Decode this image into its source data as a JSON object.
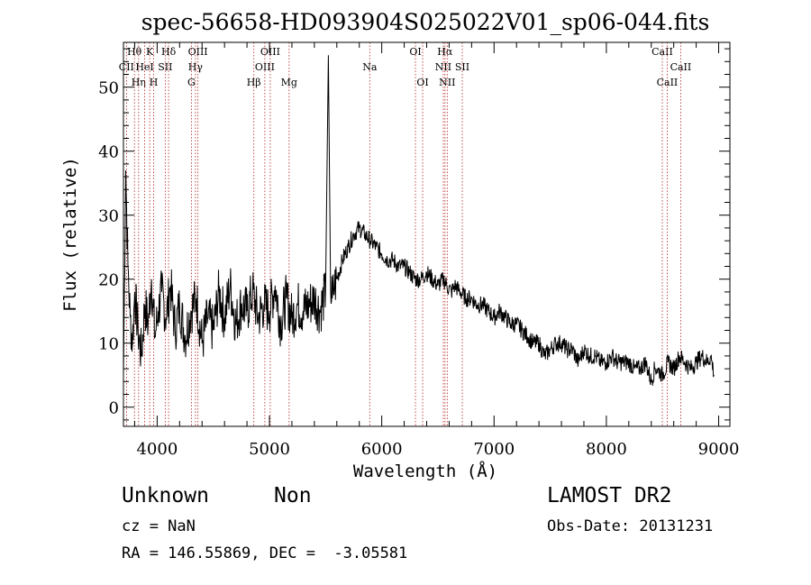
{
  "chart_data": {
    "type": "line",
    "title": "spec-56658-HD093904S025022V01_sp06-044.fits",
    "xlabel": "Wavelength (Å)",
    "ylabel": "Flux (relative)",
    "xlim": [
      3700,
      9100
    ],
    "ylim": [
      -3,
      57
    ],
    "x_ticks": [
      4000,
      5000,
      6000,
      7000,
      8000,
      9000
    ],
    "y_ticks": [
      0,
      10,
      20,
      30,
      40,
      50
    ],
    "grid": false,
    "series": [
      {
        "x": [
          3700,
          3720,
          3740,
          3760,
          3780,
          3800,
          3830,
          3860,
          3890,
          3920,
          3950,
          3980,
          4010,
          4040,
          4080,
          4120,
          4160,
          4200,
          4250,
          4300,
          4350,
          4400,
          4450,
          4500,
          4550,
          4600,
          4650,
          4700,
          4750,
          4800,
          4850,
          4900,
          4950,
          5000,
          5050,
          5100,
          5150,
          5200,
          5250,
          5300,
          5350,
          5400,
          5450,
          5500,
          5525,
          5545,
          5560,
          5580,
          5600,
          5650,
          5700,
          5750,
          5800,
          5850,
          5900,
          5950,
          6000,
          6050,
          6100,
          6150,
          6200,
          6250,
          6300,
          6350,
          6400,
          6450,
          6500,
          6550,
          6580,
          6620,
          6650,
          6700,
          6750,
          6800,
          6850,
          6900,
          6950,
          7000,
          7050,
          7100,
          7150,
          7200,
          7250,
          7300,
          7350,
          7400,
          7450,
          7500,
          7550,
          7600,
          7650,
          7700,
          7750,
          7800,
          7850,
          7900,
          7950,
          8000,
          8050,
          8100,
          8150,
          8200,
          8250,
          8300,
          8350,
          8400,
          8430,
          8450,
          8500,
          8550,
          8600,
          8650,
          8700,
          8750,
          8800,
          8850,
          8900,
          8930,
          8960
        ],
        "y": [
          5,
          37,
          22,
          14,
          10,
          18,
          12,
          8,
          16,
          13,
          20,
          11,
          15,
          18,
          14,
          19,
          12,
          16,
          11,
          15,
          17,
          10,
          14,
          12,
          18,
          14,
          19,
          13,
          16,
          15,
          18,
          14,
          16,
          15,
          19,
          13,
          17,
          14,
          16,
          15,
          16,
          17,
          15,
          18,
          55,
          18,
          17,
          19,
          20,
          23,
          25,
          27,
          28,
          27,
          26,
          25,
          24,
          23,
          23,
          22,
          22,
          21,
          20,
          20,
          21,
          20,
          19,
          20,
          19,
          18,
          19,
          18,
          17,
          17,
          16,
          16,
          15,
          14,
          15,
          14,
          13,
          13,
          12,
          11,
          10,
          10,
          8,
          9,
          10,
          10,
          9,
          9,
          7,
          9,
          8,
          8,
          7,
          7,
          8,
          7,
          7,
          7,
          6,
          6,
          7,
          4,
          6,
          6,
          5,
          7,
          6,
          8,
          7,
          6,
          7,
          8,
          7,
          8,
          5
        ]
      }
    ],
    "lines": [
      {
        "label": "CII",
        "x": 3727,
        "row": 1
      },
      {
        "label": "Hθ",
        "x": 3798,
        "row": 0
      },
      {
        "label": "Hη",
        "x": 3835,
        "row": 2
      },
      {
        "label": "HeI",
        "x": 3889,
        "row": 1
      },
      {
        "label": "K",
        "x": 3934,
        "row": 0
      },
      {
        "label": "H",
        "x": 3969,
        "row": 2
      },
      {
        "label": "SII",
        "x": 4072,
        "row": 1
      },
      {
        "label": "Hδ",
        "x": 4102,
        "row": 0
      },
      {
        "label": "G",
        "x": 4305,
        "row": 2
      },
      {
        "label": "Hγ",
        "x": 4341,
        "row": 1
      },
      {
        "label": "OIII",
        "x": 4363,
        "row": 0
      },
      {
        "label": "Hβ",
        "x": 4861,
        "row": 2
      },
      {
        "label": "OIII",
        "x": 4959,
        "row": 1
      },
      {
        "label": "OIII",
        "x": 5007,
        "row": 0
      },
      {
        "label": "Mg",
        "x": 5175,
        "row": 2
      },
      {
        "label": "Na",
        "x": 5893,
        "row": 1
      },
      {
        "label": "OI",
        "x": 6300,
        "row": 0
      },
      {
        "label": "OI",
        "x": 6364,
        "row": 2
      },
      {
        "label": "NII",
        "x": 6548,
        "row": 1
      },
      {
        "label": "Hα",
        "x": 6563,
        "row": 0
      },
      {
        "label": "NII",
        "x": 6583,
        "row": 2
      },
      {
        "label": "SII",
        "x": 6717,
        "row": 1
      },
      {
        "label": "CaII",
        "x": 8498,
        "row": 0
      },
      {
        "label": "CaII",
        "x": 8542,
        "row": 2
      },
      {
        "label": "CaII",
        "x": 8662,
        "row": 1
      }
    ]
  },
  "info": {
    "object_class": "Unknown",
    "subclass": "Non",
    "survey": "LAMOST DR2",
    "cz": "cz = NaN",
    "obs_date": "Obs-Date: 20131231",
    "coords": "RA = 146.55869, DEC =  -3.05581"
  }
}
